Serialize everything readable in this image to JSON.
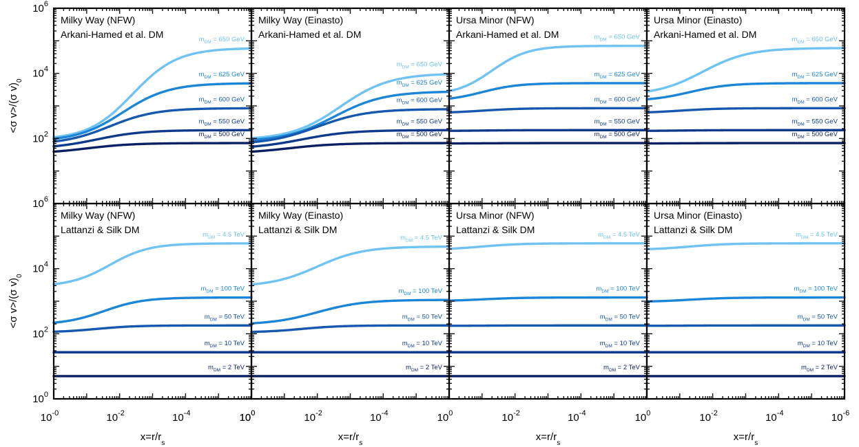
{
  "colors": {
    "c1": "#6ec3f2",
    "c2": "#1b85d8",
    "c3": "#1558ad",
    "c4": "#0d3a8d",
    "c5": "#0a1f64"
  },
  "axes": {
    "xlabel": "x=r/r",
    "xlabel_sub": "s",
    "ylabel_main": "<σ v>/(σ v)",
    "ylabel_sub": "0",
    "xtick_labels_first": [
      "10",
      "10",
      "10",
      "10"
    ],
    "xtick_exps_first": [
      "-0",
      "-2",
      "-4",
      "0"
    ],
    "xtick_labels_last": [
      "10",
      "10",
      "10",
      "10"
    ],
    "xtick_exps_last": [
      "0",
      "-2",
      "-4",
      "-6"
    ],
    "xtick_exps_mid": [
      "0",
      "-2",
      "-4",
      "0"
    ],
    "ytick_base": "10",
    "ytick_exps_top": [
      "6",
      "4",
      "2"
    ],
    "ytick_exps_bottom": [
      "6",
      "4",
      "2",
      "0"
    ]
  },
  "chart_data": [
    {
      "type": "line",
      "row": 0,
      "col": 0,
      "title_line1": "Milky Way (NFW)",
      "title_line2": "Arkani-Hamed et al. DM",
      "x_log_range": [
        1,
        1e-06
      ],
      "y_log_range": [
        1,
        1000000.0
      ],
      "ylim_display": [
        10.0,
        1000000.0
      ],
      "series": [
        {
          "name": "m_DM = 650 GeV",
          "label_main": "m",
          "label_sub": "DM",
          "label_rest": " = 650 GeV",
          "lo": 90,
          "hi": 60000,
          "mid": 0.004,
          "w": 0.68,
          "color": "c1"
        },
        {
          "name": "m_DM = 625 GeV",
          "label_main": "m",
          "label_sub": "DM",
          "label_rest": " = 625 GeV",
          "lo": 80,
          "hi": 5000,
          "mid": 0.008,
          "w": 0.7,
          "color": "c2"
        },
        {
          "name": "m_DM = 600 GeV",
          "label_main": "m",
          "label_sub": "DM",
          "label_rest": " = 600 GeV",
          "lo": 65,
          "hi": 850,
          "mid": 0.02,
          "w": 0.7,
          "color": "c3"
        },
        {
          "name": "m_DM = 550 GeV",
          "label_main": "m",
          "label_sub": "DM",
          "label_rest": " = 550 GeV",
          "lo": 48,
          "hi": 180,
          "mid": 0.05,
          "w": 0.7,
          "color": "c4"
        },
        {
          "name": "m_DM = 500 GeV",
          "label_main": "m",
          "label_sub": "DM",
          "label_rest": " = 500 GeV",
          "lo": 34,
          "hi": 72,
          "mid": 0.1,
          "w": 0.7,
          "color": "c5"
        }
      ]
    },
    {
      "type": "line",
      "row": 0,
      "col": 1,
      "title_line1": "Milky Way (Einasto)",
      "title_line2": "Arkani-Hamed et al. DM",
      "x_log_range": [
        1,
        1e-06
      ],
      "y_log_range": [
        1,
        1000000.0
      ],
      "ylim_display": [
        10.0,
        1000000.0
      ],
      "series": [
        {
          "name": "m_DM = 650 GeV",
          "label_main": "m",
          "label_sub": "DM",
          "label_rest": " = 650 GeV",
          "lo": 90,
          "hi": 10000,
          "mid": 0.002,
          "w": 0.75,
          "color": "c1"
        },
        {
          "name": "m_DM = 625 GeV",
          "label_main": "m",
          "label_sub": "DM",
          "label_rest": " = 625 GeV",
          "lo": 80,
          "hi": 2800,
          "mid": 0.003,
          "w": 0.75,
          "color": "c2"
        },
        {
          "name": "m_DM = 600 GeV",
          "label_main": "m",
          "label_sub": "DM",
          "label_rest": " = 600 GeV",
          "lo": 65,
          "hi": 800,
          "mid": 0.01,
          "w": 0.75,
          "color": "c3"
        },
        {
          "name": "m_DM = 550 GeV",
          "label_main": "m",
          "label_sub": "DM",
          "label_rest": " = 550 GeV",
          "lo": 48,
          "hi": 180,
          "mid": 0.03,
          "w": 0.75,
          "color": "c4"
        },
        {
          "name": "m_DM = 500 GeV",
          "label_main": "m",
          "label_sub": "DM",
          "label_rest": " = 500 GeV",
          "lo": 34,
          "hi": 72,
          "mid": 0.08,
          "w": 0.75,
          "color": "c5"
        }
      ]
    },
    {
      "type": "line",
      "row": 0,
      "col": 2,
      "title_line1": "Ursa Minor (NFW)",
      "title_line2": "Arkani-Hamed et al. DM",
      "x_log_range": [
        1,
        1e-06
      ],
      "y_log_range": [
        1,
        1000000.0
      ],
      "ylim_display": [
        10.0,
        1000000.0
      ],
      "series": [
        {
          "name": "m_DM = 650 GeV",
          "label_main": "m",
          "label_sub": "DM",
          "label_rest": " = 650 GeV",
          "lo": 2100,
          "hi": 70000,
          "mid": 0.05,
          "w": 0.55,
          "color": "c1"
        },
        {
          "name": "m_DM = 625 GeV",
          "label_main": "m",
          "label_sub": "DM",
          "label_rest": " = 625 GeV",
          "lo": 1400,
          "hi": 5000,
          "mid": 0.1,
          "w": 0.55,
          "color": "c2"
        },
        {
          "name": "m_DM = 600 GeV",
          "label_main": "m",
          "label_sub": "DM",
          "label_rest": " = 600 GeV",
          "lo": 600,
          "hi": 850,
          "mid": 0.1,
          "w": 0.6,
          "color": "c3"
        },
        {
          "name": "m_DM = 550 GeV",
          "label_main": "m",
          "label_sub": "DM",
          "label_rest": " = 550 GeV",
          "lo": 170,
          "hi": 180,
          "mid": 0.1,
          "w": 0.6,
          "color": "c4"
        },
        {
          "name": "m_DM = 500 GeV",
          "label_main": "m",
          "label_sub": "DM",
          "label_rest": " = 500 GeV",
          "lo": 70,
          "hi": 72,
          "mid": 0.1,
          "w": 0.6,
          "color": "c5"
        }
      ]
    },
    {
      "type": "line",
      "row": 0,
      "col": 3,
      "title_line1": "Ursa Minor (Einasto)",
      "title_line2": "Arkani-Hamed et al. DM",
      "x_log_range": [
        1,
        1e-06
      ],
      "y_log_range": [
        1,
        1000000.0
      ],
      "ylim_display": [
        10.0,
        1000000.0
      ],
      "series": [
        {
          "name": "m_DM = 650 GeV",
          "label_main": "m",
          "label_sub": "DM",
          "label_rest": " = 650 GeV",
          "lo": 2100,
          "hi": 60000,
          "mid": 0.02,
          "w": 0.7,
          "color": "c1"
        },
        {
          "name": "m_DM = 625 GeV",
          "label_main": "m",
          "label_sub": "DM",
          "label_rest": " = 625 GeV",
          "lo": 1400,
          "hi": 5000,
          "mid": 0.05,
          "w": 0.6,
          "color": "c2"
        },
        {
          "name": "m_DM = 600 GeV",
          "label_main": "m",
          "label_sub": "DM",
          "label_rest": " = 600 GeV",
          "lo": 600,
          "hi": 850,
          "mid": 0.1,
          "w": 0.6,
          "color": "c3"
        },
        {
          "name": "m_DM = 550 GeV",
          "label_main": "m",
          "label_sub": "DM",
          "label_rest": " = 550 GeV",
          "lo": 170,
          "hi": 180,
          "mid": 0.1,
          "w": 0.6,
          "color": "c4"
        },
        {
          "name": "m_DM = 500 GeV",
          "label_main": "m",
          "label_sub": "DM",
          "label_rest": " = 500 GeV",
          "lo": 70,
          "hi": 72,
          "mid": 0.1,
          "w": 0.6,
          "color": "c5"
        }
      ]
    },
    {
      "type": "line",
      "row": 1,
      "col": 0,
      "title_line1": "Milky Way (NFW)",
      "title_line2": "Lattanzi & Silk DM",
      "x_log_range": [
        1,
        1e-06
      ],
      "y_log_range": [
        1,
        1000000.0
      ],
      "ylim_display": [
        1.0,
        1000000.0
      ],
      "series": [
        {
          "name": "m_DM = 4.5 TeV",
          "label_main": "m",
          "label_sub": "DM",
          "label_rest": " = 4.5 TeV",
          "lo": 2800,
          "hi": 60000,
          "mid": 0.02,
          "w": 0.6,
          "color": "c1"
        },
        {
          "name": "m_DM = 100 TeV",
          "label_main": "m",
          "label_sub": "DM",
          "label_rest": " = 100 TeV",
          "lo": 190,
          "hi": 1300,
          "mid": 0.03,
          "w": 0.6,
          "color": "c2"
        },
        {
          "name": "m_DM = 50 TeV",
          "label_main": "m",
          "label_sub": "DM",
          "label_rest": " = 50 TeV",
          "lo": 110,
          "hi": 180,
          "mid": 0.05,
          "w": 0.6,
          "color": "c3"
        },
        {
          "name": "m_DM = 10 TeV",
          "label_main": "m",
          "label_sub": "DM",
          "label_rest": " = 10 TeV",
          "lo": 27,
          "hi": 27,
          "mid": 0.1,
          "w": 0.6,
          "color": "c4"
        },
        {
          "name": "m_DM = 2 TeV",
          "label_main": "m",
          "label_sub": "DM",
          "label_rest": " = 2 TeV",
          "lo": 5,
          "hi": 5,
          "mid": 0.1,
          "w": 0.6,
          "color": "c5"
        }
      ]
    },
    {
      "type": "line",
      "row": 1,
      "col": 1,
      "title_line1": "Milky Way (Einasto)",
      "title_line2": "Lattanzi & Silk DM",
      "x_log_range": [
        1,
        1e-06
      ],
      "y_log_range": [
        1,
        1000000.0
      ],
      "ylim_display": [
        1.0,
        1000000.0
      ],
      "series": [
        {
          "name": "m_DM = 4.5 TeV",
          "label_main": "m",
          "label_sub": "DM",
          "label_rest": " = 4.5 TeV",
          "lo": 2800,
          "hi": 48000,
          "mid": 0.01,
          "w": 0.7,
          "color": "c1"
        },
        {
          "name": "m_DM = 100 TeV",
          "label_main": "m",
          "label_sub": "DM",
          "label_rest": " = 100 TeV",
          "lo": 190,
          "hi": 1100,
          "mid": 0.01,
          "w": 0.7,
          "color": "c2"
        },
        {
          "name": "m_DM = 50 TeV",
          "label_main": "m",
          "label_sub": "DM",
          "label_rest": " = 50 TeV",
          "lo": 110,
          "hi": 180,
          "mid": 0.03,
          "w": 0.6,
          "color": "c3"
        },
        {
          "name": "m_DM = 10 TeV",
          "label_main": "m",
          "label_sub": "DM",
          "label_rest": " = 10 TeV",
          "lo": 27,
          "hi": 27,
          "mid": 0.1,
          "w": 0.6,
          "color": "c4"
        },
        {
          "name": "m_DM = 2 TeV",
          "label_main": "m",
          "label_sub": "DM",
          "label_rest": " = 2 TeV",
          "lo": 5,
          "hi": 5,
          "mid": 0.1,
          "w": 0.6,
          "color": "c5"
        }
      ]
    },
    {
      "type": "line",
      "row": 1,
      "col": 2,
      "title_line1": "Ursa Minor (NFW)",
      "title_line2": "Lattanzi & Silk DM",
      "x_log_range": [
        1,
        1e-06
      ],
      "y_log_range": [
        1,
        1000000.0
      ],
      "ylim_display": [
        1.0,
        1000000.0
      ],
      "series": [
        {
          "name": "m_DM = 4.5 TeV",
          "label_main": "m",
          "label_sub": "DM",
          "label_rest": " = 4.5 TeV",
          "lo": 38000,
          "hi": 60000,
          "mid": 0.1,
          "w": 0.6,
          "color": "c1"
        },
        {
          "name": "m_DM = 100 TeV",
          "label_main": "m",
          "label_sub": "DM",
          "label_rest": " = 100 TeV",
          "lo": 1000,
          "hi": 1300,
          "mid": 0.1,
          "w": 0.6,
          "color": "c2"
        },
        {
          "name": "m_DM = 50 TeV",
          "label_main": "m",
          "label_sub": "DM",
          "label_rest": " = 50 TeV",
          "lo": 175,
          "hi": 180,
          "mid": 0.1,
          "w": 0.6,
          "color": "c3"
        },
        {
          "name": "m_DM = 10 TeV",
          "label_main": "m",
          "label_sub": "DM",
          "label_rest": " = 10 TeV",
          "lo": 27,
          "hi": 27,
          "mid": 0.1,
          "w": 0.6,
          "color": "c4"
        },
        {
          "name": "m_DM = 2 TeV",
          "label_main": "m",
          "label_sub": "DM",
          "label_rest": " = 2 TeV",
          "lo": 5,
          "hi": 5,
          "mid": 0.1,
          "w": 0.6,
          "color": "c5"
        }
      ]
    },
    {
      "type": "line",
      "row": 1,
      "col": 3,
      "title_line1": "Ursa Minor (Einasto)",
      "title_line2": "Lattanzi & Silk DM",
      "x_log_range": [
        1,
        1e-06
      ],
      "y_log_range": [
        1,
        1000000.0
      ],
      "ylim_display": [
        1.0,
        1000000.0
      ],
      "series": [
        {
          "name": "m_DM = 4.5 TeV",
          "label_main": "m",
          "label_sub": "DM",
          "label_rest": " = 4.5 TeV",
          "lo": 38000,
          "hi": 60000,
          "mid": 0.05,
          "w": 0.6,
          "color": "c1"
        },
        {
          "name": "m_DM = 100 TeV",
          "label_main": "m",
          "label_sub": "DM",
          "label_rest": " = 100 TeV",
          "lo": 950,
          "hi": 1300,
          "mid": 0.05,
          "w": 0.6,
          "color": "c2"
        },
        {
          "name": "m_DM = 50 TeV",
          "label_main": "m",
          "label_sub": "DM",
          "label_rest": " = 50 TeV",
          "lo": 175,
          "hi": 180,
          "mid": 0.1,
          "w": 0.6,
          "color": "c3"
        },
        {
          "name": "m_DM = 10 TeV",
          "label_main": "m",
          "label_sub": "DM",
          "label_rest": " = 10 TeV",
          "lo": 27,
          "hi": 27,
          "mid": 0.1,
          "w": 0.6,
          "color": "c4"
        },
        {
          "name": "m_DM = 2 TeV",
          "label_main": "m",
          "label_sub": "DM",
          "label_rest": " = 2 TeV",
          "lo": 5,
          "hi": 5,
          "mid": 0.1,
          "w": 0.6,
          "color": "c5"
        }
      ]
    }
  ]
}
